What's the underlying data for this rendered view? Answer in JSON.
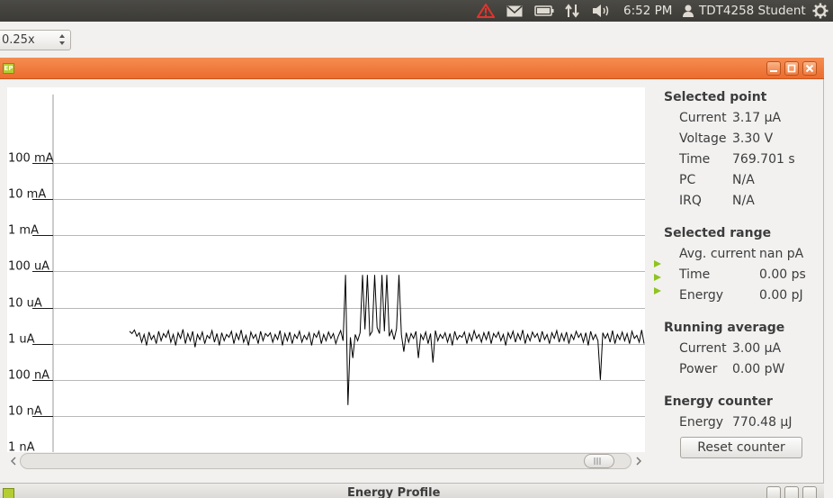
{
  "top_panel": {
    "time": "6:52 PM",
    "user": "TDT4258 Student",
    "icons": [
      "warning-icon",
      "mail-icon",
      "battery-icon",
      "network-icon",
      "volume-icon",
      "user-icon",
      "power-gear-icon"
    ]
  },
  "toolbar": {
    "zoom_value": "0.25x"
  },
  "window": {
    "title": "",
    "icon_text": "EP"
  },
  "chart_data": {
    "type": "line",
    "title": "",
    "xlabel": "",
    "ylabel": "",
    "yscale": "log",
    "yticks": [
      "100 mA",
      "10 mA",
      "1 mA",
      "100 uA",
      "10 uA",
      "1 uA",
      "100 nA",
      "10 nA",
      "1 nA"
    ],
    "ytick_values_A": [
      0.1,
      0.01,
      0.001,
      0.0001,
      1e-05,
      1e-06,
      1e-07,
      1e-08,
      1e-09
    ],
    "grid": true,
    "series": [
      {
        "color": "#000000",
        "values_uA": [
          2.2,
          1.9,
          2.4,
          1.6,
          2.0,
          1.1,
          1.8,
          0.9,
          2.1,
          1.3,
          1.7,
          1.0,
          2.2,
          1.2,
          1.9,
          1.5,
          2.3,
          1.1,
          1.8,
          0.9,
          2.0,
          1.4,
          2.5,
          1.0,
          1.9,
          1.2,
          2.2,
          0.8,
          1.8,
          1.3,
          2.1,
          1.0,
          1.7,
          1.4,
          2.3,
          1.1,
          1.9,
          0.9,
          2.0,
          1.2,
          1.8,
          1.5,
          2.2,
          1.0,
          1.9,
          1.3,
          2.4,
          1.1,
          1.7,
          0.9,
          2.1,
          1.4,
          1.8,
          1.0,
          2.2,
          1.2,
          1.9,
          1.6,
          2.0,
          1.1,
          1.8,
          1.3,
          2.3,
          0.9,
          1.9,
          1.2,
          2.1,
          1.0,
          1.8,
          1.4,
          2.2,
          1.1,
          1.7,
          1.3,
          2.0,
          0.9,
          1.9,
          1.5,
          2.2,
          1.0,
          1.8,
          1.2,
          2.1,
          1.4,
          1.9,
          1.0,
          1.6,
          2.3,
          1.2,
          80,
          0.02,
          1.5,
          0.4,
          1.8,
          1.2,
          2.0,
          80,
          2.5,
          80,
          1.7,
          2.2,
          80,
          2.8,
          1.9,
          80,
          2.2,
          80,
          1.6,
          2.4,
          1.3,
          2.6,
          80,
          1.8,
          0.6,
          2.0,
          1.1,
          1.9,
          1.4,
          2.2,
          0.4,
          1.8,
          1.3,
          2.1,
          1.0,
          1.9,
          0.3,
          2.3,
          1.2,
          1.8,
          1.4,
          2.0,
          1.1,
          1.9,
          0.9,
          2.2,
          1.3,
          1.7,
          1.5,
          2.1,
          1.0,
          1.9,
          1.2,
          2.3,
          1.4,
          1.8,
          1.1,
          2.0,
          1.3,
          2.2,
          1.0,
          1.9,
          1.5,
          2.1,
          1.2,
          1.8,
          0.9,
          2.0,
          1.4,
          2.2,
          1.1,
          1.9,
          1.3,
          2.4,
          1.0,
          1.8,
          1.2,
          2.1,
          1.5,
          1.9,
          1.1,
          2.2,
          1.3,
          1.8,
          1.0,
          2.0,
          1.4,
          2.3,
          1.1,
          1.9,
          1.2,
          2.1,
          1.0,
          1.8,
          1.3,
          2.2,
          1.5,
          1.9,
          1.1,
          2.0,
          0.9,
          2.2,
          1.3,
          1.8,
          1.2,
          0.1,
          2.0,
          1.4,
          1.9,
          1.1,
          2.3,
          1.0,
          1.8,
          1.3,
          2.1,
          1.2,
          1.9,
          1.0,
          2.2,
          1.4,
          1.7,
          1.1,
          2.4,
          1.0
        ]
      }
    ]
  },
  "scrollbar": {
    "thumb_position": 0.97
  },
  "side_panel": {
    "selected_point": {
      "title": "Selected point",
      "rows": [
        {
          "label": "Current",
          "value": "3.17 μA"
        },
        {
          "label": "Voltage",
          "value": "3.30 V"
        },
        {
          "label": "Time",
          "value": "769.701 s"
        },
        {
          "label": "PC",
          "value": "N/A"
        },
        {
          "label": "IRQ",
          "value": "N/A"
        }
      ]
    },
    "selected_range": {
      "title": "Selected range",
      "rows": [
        {
          "label": "Avg. current",
          "value": "nan pA"
        },
        {
          "label": "Time",
          "value": "0.00 ps"
        },
        {
          "label": "Energy",
          "value": "0.00 pJ"
        }
      ]
    },
    "running_average": {
      "title": "Running average",
      "rows": [
        {
          "label": "Current",
          "value": "3.00 μA"
        },
        {
          "label": "Power",
          "value": "0.00 pW"
        }
      ]
    },
    "energy_counter": {
      "title": "Energy counter",
      "rows": [
        {
          "label": "Energy",
          "value": "770.48 μJ"
        }
      ],
      "reset_label": "Reset counter"
    }
  },
  "second_window": {
    "title": "Energy Profile"
  },
  "colors": {
    "titlebar": "#ec6c2e",
    "panel": "#3c3b37",
    "range_marker": "#8fc320"
  }
}
